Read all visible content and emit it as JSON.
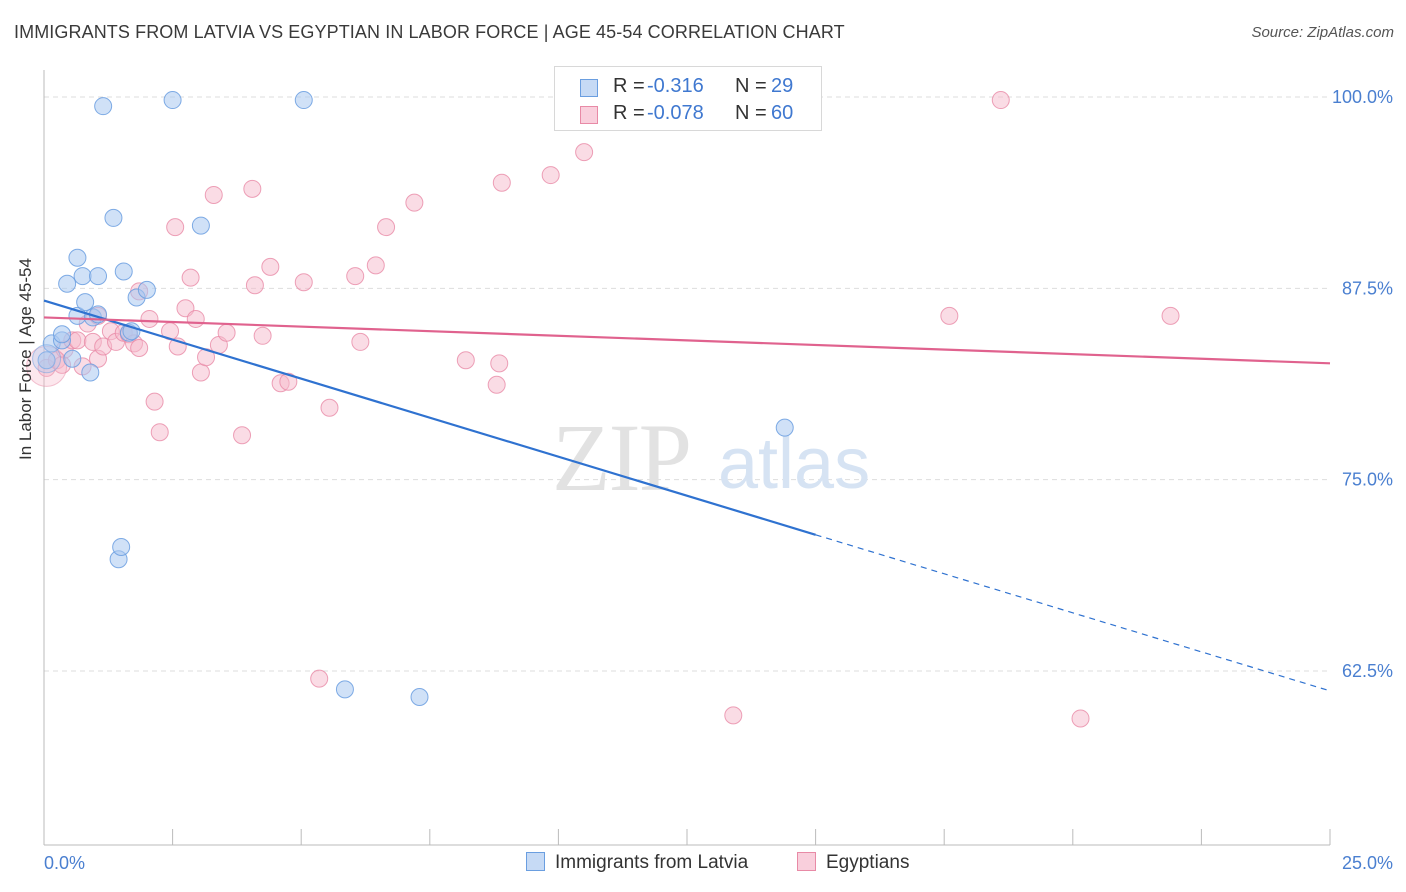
{
  "header": {
    "title": "IMMIGRANTS FROM LATVIA VS EGYPTIAN IN LABOR FORCE | AGE 45-54 CORRELATION CHART",
    "source": "Source: ZipAtlas.com"
  },
  "watermark": {
    "zip": "ZIP",
    "atlas": "atlas"
  },
  "colors": {
    "blue_fill": "#a9c8f0",
    "blue_stroke": "#6a9ee0",
    "blue_line": "#2f72d0",
    "pink_fill": "#f5b9cc",
    "pink_stroke": "#e88aa6",
    "pink_line": "#e0628e",
    "tick_label": "#4a7fd0",
    "grid": "#dddddd"
  },
  "legend_top": {
    "rows": [
      {
        "r_label": "R =",
        "r_value": "-0.316",
        "n_label": "N =",
        "n_value": "29"
      },
      {
        "r_label": "R =",
        "r_value": "-0.078",
        "n_label": "N =",
        "n_value": "60"
      }
    ]
  },
  "legend_bottom": {
    "items": [
      {
        "label": "Immigrants from Latvia"
      },
      {
        "label": "Egyptians"
      }
    ]
  },
  "chart_data": {
    "type": "scatter",
    "title": "IMMIGRANTS FROM LATVIA VS EGYPTIAN IN LABOR FORCE | AGE 45-54 CORRELATION CHART",
    "xlabel": "",
    "ylabel": "In Labor Force | Age 45-54",
    "xlim": [
      0,
      25
    ],
    "ylim": [
      50,
      101
    ],
    "x_unit": "%",
    "y_unit": "%",
    "x_tick_labels": [
      "0.0%",
      "25.0%"
    ],
    "y_ticks": [
      62.5,
      75.0,
      87.5,
      100.0
    ],
    "y_tick_labels": [
      "62.5%",
      "75.0%",
      "87.5%",
      "100.0%"
    ],
    "grid": "horizontal dashed",
    "legend_position": "top-center and bottom",
    "series": [
      {
        "name": "Immigrants from Latvia",
        "color": "#a9c8f0",
        "r": -0.316,
        "n": 29,
        "trend": {
          "x": [
            0,
            15
          ],
          "y": [
            86.7,
            71.4
          ],
          "dashed_to": [
            25,
            61.2
          ]
        },
        "points": [
          [
            0.05,
            82.8
          ],
          [
            0.15,
            83.9
          ],
          [
            0.35,
            84.1
          ],
          [
            0.35,
            84.5
          ],
          [
            0.45,
            87.8
          ],
          [
            0.55,
            82.9
          ],
          [
            0.65,
            85.7
          ],
          [
            0.65,
            89.5
          ],
          [
            0.75,
            88.3
          ],
          [
            0.8,
            86.6
          ],
          [
            0.9,
            82.0
          ],
          [
            0.95,
            85.6
          ],
          [
            1.05,
            85.8
          ],
          [
            1.05,
            88.3
          ],
          [
            1.15,
            99.4
          ],
          [
            1.35,
            92.1
          ],
          [
            1.45,
            69.8
          ],
          [
            1.5,
            70.6
          ],
          [
            1.55,
            88.6
          ],
          [
            1.65,
            84.6
          ],
          [
            1.7,
            84.7
          ],
          [
            1.8,
            86.9
          ],
          [
            2.0,
            87.4
          ],
          [
            2.5,
            99.8
          ],
          [
            3.05,
            91.6
          ],
          [
            5.05,
            99.8
          ],
          [
            5.85,
            61.3
          ],
          [
            7.3,
            60.8
          ],
          [
            14.4,
            78.4
          ]
        ]
      },
      {
        "name": "Egyptians",
        "color": "#f5b9cc",
        "r": -0.078,
        "n": 60,
        "trend": {
          "x": [
            0,
            25
          ],
          "y": [
            85.6,
            82.6
          ]
        },
        "points": [
          [
            0.05,
            82.3
          ],
          [
            0.25,
            82.8
          ],
          [
            0.35,
            82.5
          ],
          [
            0.4,
            83.5
          ],
          [
            0.55,
            84.1
          ],
          [
            0.65,
            84.1
          ],
          [
            0.75,
            82.4
          ],
          [
            0.85,
            85.2
          ],
          [
            0.95,
            84.0
          ],
          [
            1.05,
            85.7
          ],
          [
            1.05,
            82.9
          ],
          [
            1.15,
            83.7
          ],
          [
            1.3,
            84.7
          ],
          [
            1.4,
            84.0
          ],
          [
            1.55,
            84.6
          ],
          [
            1.65,
            84.5
          ],
          [
            1.75,
            83.9
          ],
          [
            1.85,
            83.6
          ],
          [
            1.85,
            87.3
          ],
          [
            2.05,
            85.5
          ],
          [
            2.15,
            80.1
          ],
          [
            2.25,
            78.1
          ],
          [
            2.45,
            84.7
          ],
          [
            2.55,
            91.5
          ],
          [
            2.6,
            83.7
          ],
          [
            2.75,
            86.2
          ],
          [
            2.85,
            88.2
          ],
          [
            2.95,
            85.5
          ],
          [
            3.05,
            82.0
          ],
          [
            3.15,
            83.0
          ],
          [
            3.3,
            93.6
          ],
          [
            3.4,
            83.8
          ],
          [
            3.55,
            84.6
          ],
          [
            3.85,
            77.9
          ],
          [
            4.05,
            94.0
          ],
          [
            4.1,
            87.7
          ],
          [
            4.25,
            84.4
          ],
          [
            4.4,
            88.9
          ],
          [
            4.6,
            81.3
          ],
          [
            4.75,
            81.4
          ],
          [
            5.05,
            87.9
          ],
          [
            5.35,
            62.0
          ],
          [
            5.55,
            79.7
          ],
          [
            6.05,
            88.3
          ],
          [
            6.15,
            84.0
          ],
          [
            6.45,
            89.0
          ],
          [
            6.65,
            91.5
          ],
          [
            7.2,
            93.1
          ],
          [
            8.2,
            82.8
          ],
          [
            8.8,
            81.2
          ],
          [
            8.85,
            82.6
          ],
          [
            8.9,
            94.4
          ],
          [
            9.85,
            94.9
          ],
          [
            10.5,
            96.4
          ],
          [
            11.2,
            99.8
          ],
          [
            13.4,
            59.6
          ],
          [
            17.6,
            85.7
          ],
          [
            18.6,
            99.8
          ],
          [
            20.15,
            59.4
          ],
          [
            21.9,
            85.7
          ]
        ]
      }
    ]
  }
}
